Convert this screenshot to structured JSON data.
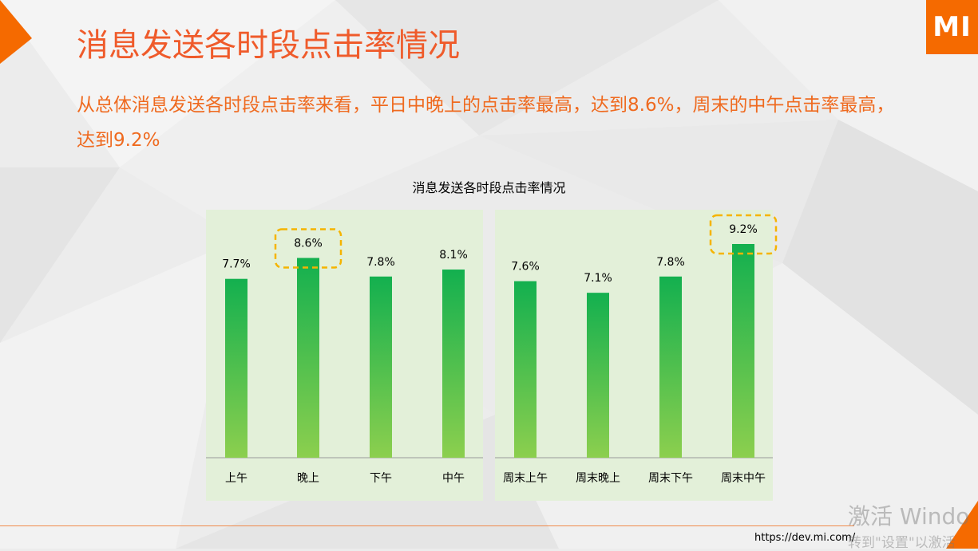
{
  "header": {
    "title": "消息发送各时段点击率情况",
    "logo": "MI"
  },
  "description": "从总体消息发送各时段点击率来看，平日中晚上的点击率最高，达到8.6%，周末的中午点击率最高，达到9.2%",
  "footer": {
    "url": "https://dev.mi.com/",
    "watermark_line1": "激活 Windo",
    "watermark_line2": "转到\"设置\"以激活"
  },
  "colors": {
    "accent": "#ef5b2b",
    "panel": "#e3f0d9",
    "bar_top": "#13b04f",
    "bar_bottom": "#8ccf4e",
    "highlight": "#f5b400"
  },
  "chart_data": {
    "type": "bar",
    "title": "消息发送各时段点击率情况",
    "unit": "%",
    "panels": [
      {
        "categories": [
          "上午",
          "晚上",
          "下午",
          "中午"
        ],
        "values": [
          7.7,
          8.6,
          7.8,
          8.1
        ],
        "labels": [
          "7.7%",
          "8.6%",
          "7.8%",
          "8.1%"
        ],
        "highlight_index": 1
      },
      {
        "categories": [
          "周末上午",
          "周末晚上",
          "周末下午",
          "周末中午"
        ],
        "values": [
          7.6,
          7.1,
          7.8,
          9.2
        ],
        "labels": [
          "7.6%",
          "7.1%",
          "7.8%",
          "9.2%"
        ],
        "highlight_index": 3
      }
    ]
  }
}
